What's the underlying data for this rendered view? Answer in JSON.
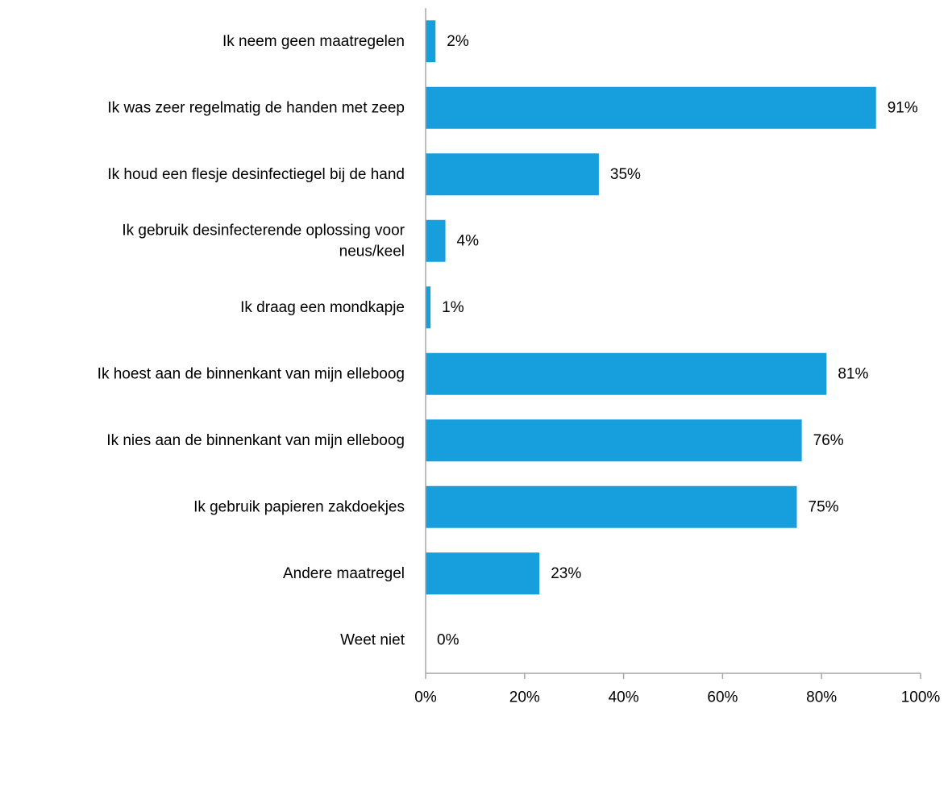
{
  "chart_data": {
    "type": "bar",
    "orientation": "horizontal",
    "categories": [
      [
        "Ik neem geen maatregelen"
      ],
      [
        "Ik was zeer regelmatig de handen met zeep"
      ],
      [
        "Ik houd een flesje desinfectiegel bij de hand"
      ],
      [
        "Ik gebruik desinfecterende oplossing voor",
        "neus/keel"
      ],
      [
        "Ik draag een mondkapje"
      ],
      [
        "Ik hoest aan de binnenkant van mijn elleboog"
      ],
      [
        "Ik nies aan de binnenkant van mijn elleboog"
      ],
      [
        "Ik gebruik papieren zakdoekjes"
      ],
      [
        "Andere maatregel"
      ],
      [
        "Weet niet"
      ]
    ],
    "values": [
      2,
      91,
      35,
      4,
      1,
      81,
      76,
      75,
      23,
      0
    ],
    "value_labels": [
      "2%",
      "91%",
      "35%",
      "4%",
      "1%",
      "81%",
      "76%",
      "75%",
      "23%",
      "0%"
    ],
    "x_ticks": [
      0,
      20,
      40,
      60,
      80,
      100
    ],
    "x_tick_labels": [
      "0%",
      "20%",
      "40%",
      "60%",
      "80%",
      "100%"
    ],
    "xlim": [
      0,
      100
    ],
    "title": "",
    "xlabel": "",
    "ylabel": "",
    "grid": false,
    "colors": {
      "bar": "#179FDD",
      "axis": "#A6A6A6",
      "text": "#000000"
    }
  }
}
